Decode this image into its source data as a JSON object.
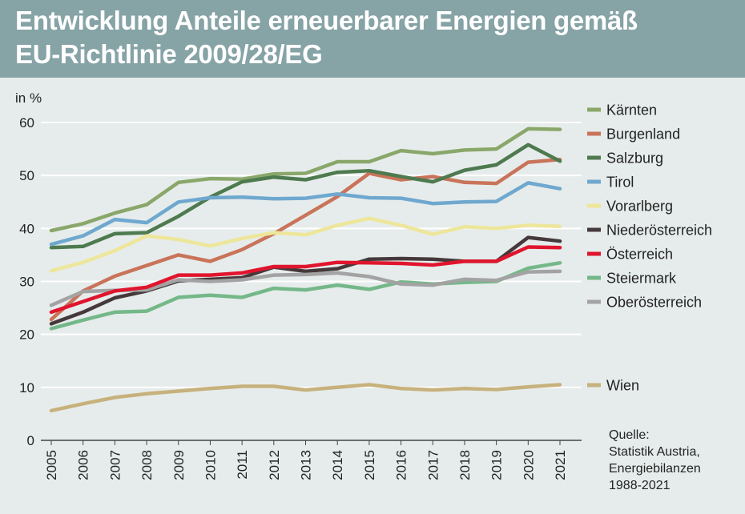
{
  "title_line1": "Entwicklung Anteile erneuerbarer Energien gemäß",
  "title_line2": "EU-Richtlinie 2009/28/EG",
  "source": [
    "Quelle:",
    "Statistik Austria,",
    "Energiebilanzen",
    "1988-2021"
  ],
  "colors": {
    "header_bg": "#86a3a6",
    "plot_bg": "#e6eceb",
    "grid": "#ffffff"
  },
  "chart_data": {
    "type": "line",
    "title": "Entwicklung Anteile erneuerbarer Energien gemäß EU-Richtlinie 2009/28/EG",
    "ylabel": "in %",
    "xlabel": "",
    "ylim": [
      0,
      60
    ],
    "yticks": [
      "0",
      "10",
      "20",
      "30",
      "40",
      "50",
      "60"
    ],
    "grid": true,
    "legend_position": "right",
    "x": [
      "2005",
      "2006",
      "2007",
      "2008",
      "2009",
      "2010",
      "2011",
      "2012",
      "2013",
      "2014",
      "2015",
      "2016",
      "2017",
      "2018",
      "2019",
      "2020",
      "2021"
    ],
    "series": [
      {
        "name": "Kärnten",
        "color": "#8aa76a",
        "values": [
          39.6,
          40.9,
          42.9,
          44.5,
          48.7,
          49.4,
          49.3,
          50.3,
          50.4,
          52.6,
          52.6,
          54.7,
          54.1,
          54.8,
          55.0,
          58.8,
          58.7
        ]
      },
      {
        "name": "Burgenland",
        "color": "#c9745a",
        "values": [
          22.8,
          28.2,
          31.0,
          33.0,
          35.0,
          33.8,
          36.0,
          39.0,
          42.5,
          46.0,
          50.4,
          49.2,
          49.8,
          48.7,
          48.5,
          52.5,
          53.0
        ]
      },
      {
        "name": "Salzburg",
        "color": "#4e7a4f",
        "values": [
          36.4,
          36.6,
          39.0,
          39.2,
          42.3,
          45.9,
          48.8,
          49.7,
          49.2,
          50.6,
          50.9,
          49.8,
          48.8,
          51.0,
          52.0,
          55.8,
          52.7
        ]
      },
      {
        "name": "Tirol",
        "color": "#6fa8cf",
        "values": [
          37.0,
          38.6,
          41.7,
          41.1,
          45.0,
          45.8,
          45.9,
          45.6,
          45.7,
          46.5,
          45.8,
          45.7,
          44.7,
          45.0,
          45.1,
          48.6,
          47.5
        ]
      },
      {
        "name": "Vorarlberg",
        "color": "#ede69b",
        "values": [
          32.0,
          33.6,
          35.8,
          38.6,
          37.9,
          36.7,
          38.1,
          39.2,
          38.8,
          40.6,
          41.9,
          40.6,
          38.9,
          40.3,
          40.0,
          40.6,
          40.4
        ]
      },
      {
        "name": "Niederösterreich",
        "color": "#45393b",
        "values": [
          22.0,
          24.2,
          26.9,
          28.2,
          30.1,
          30.4,
          30.7,
          32.7,
          31.9,
          32.4,
          34.2,
          34.3,
          34.2,
          33.8,
          33.8,
          38.3,
          37.6
        ]
      },
      {
        "name": "Österreich",
        "color": "#e0152d",
        "values": [
          24.2,
          26.2,
          28.2,
          28.9,
          31.2,
          31.2,
          31.6,
          32.8,
          32.8,
          33.6,
          33.5,
          33.4,
          33.1,
          33.8,
          33.8,
          36.5,
          36.4
        ]
      },
      {
        "name": "Steiermark",
        "color": "#74b889",
        "values": [
          21.1,
          22.7,
          24.2,
          24.4,
          27.0,
          27.4,
          27.0,
          28.7,
          28.4,
          29.3,
          28.5,
          29.9,
          29.5,
          29.8,
          30.0,
          32.5,
          33.5
        ]
      },
      {
        "name": "Oberösterreich",
        "color": "#a3a3a3",
        "values": [
          25.5,
          28.1,
          28.3,
          28.4,
          30.3,
          30.0,
          30.3,
          31.2,
          31.3,
          31.6,
          30.9,
          29.5,
          29.3,
          30.4,
          30.2,
          31.8,
          31.9
        ]
      },
      {
        "name": "Wien",
        "color": "#c7b17c",
        "values": [
          5.6,
          6.9,
          8.1,
          8.8,
          9.3,
          9.8,
          10.2,
          10.2,
          9.5,
          10.0,
          10.5,
          9.8,
          9.5,
          9.8,
          9.6,
          10.1,
          10.5
        ]
      }
    ]
  }
}
